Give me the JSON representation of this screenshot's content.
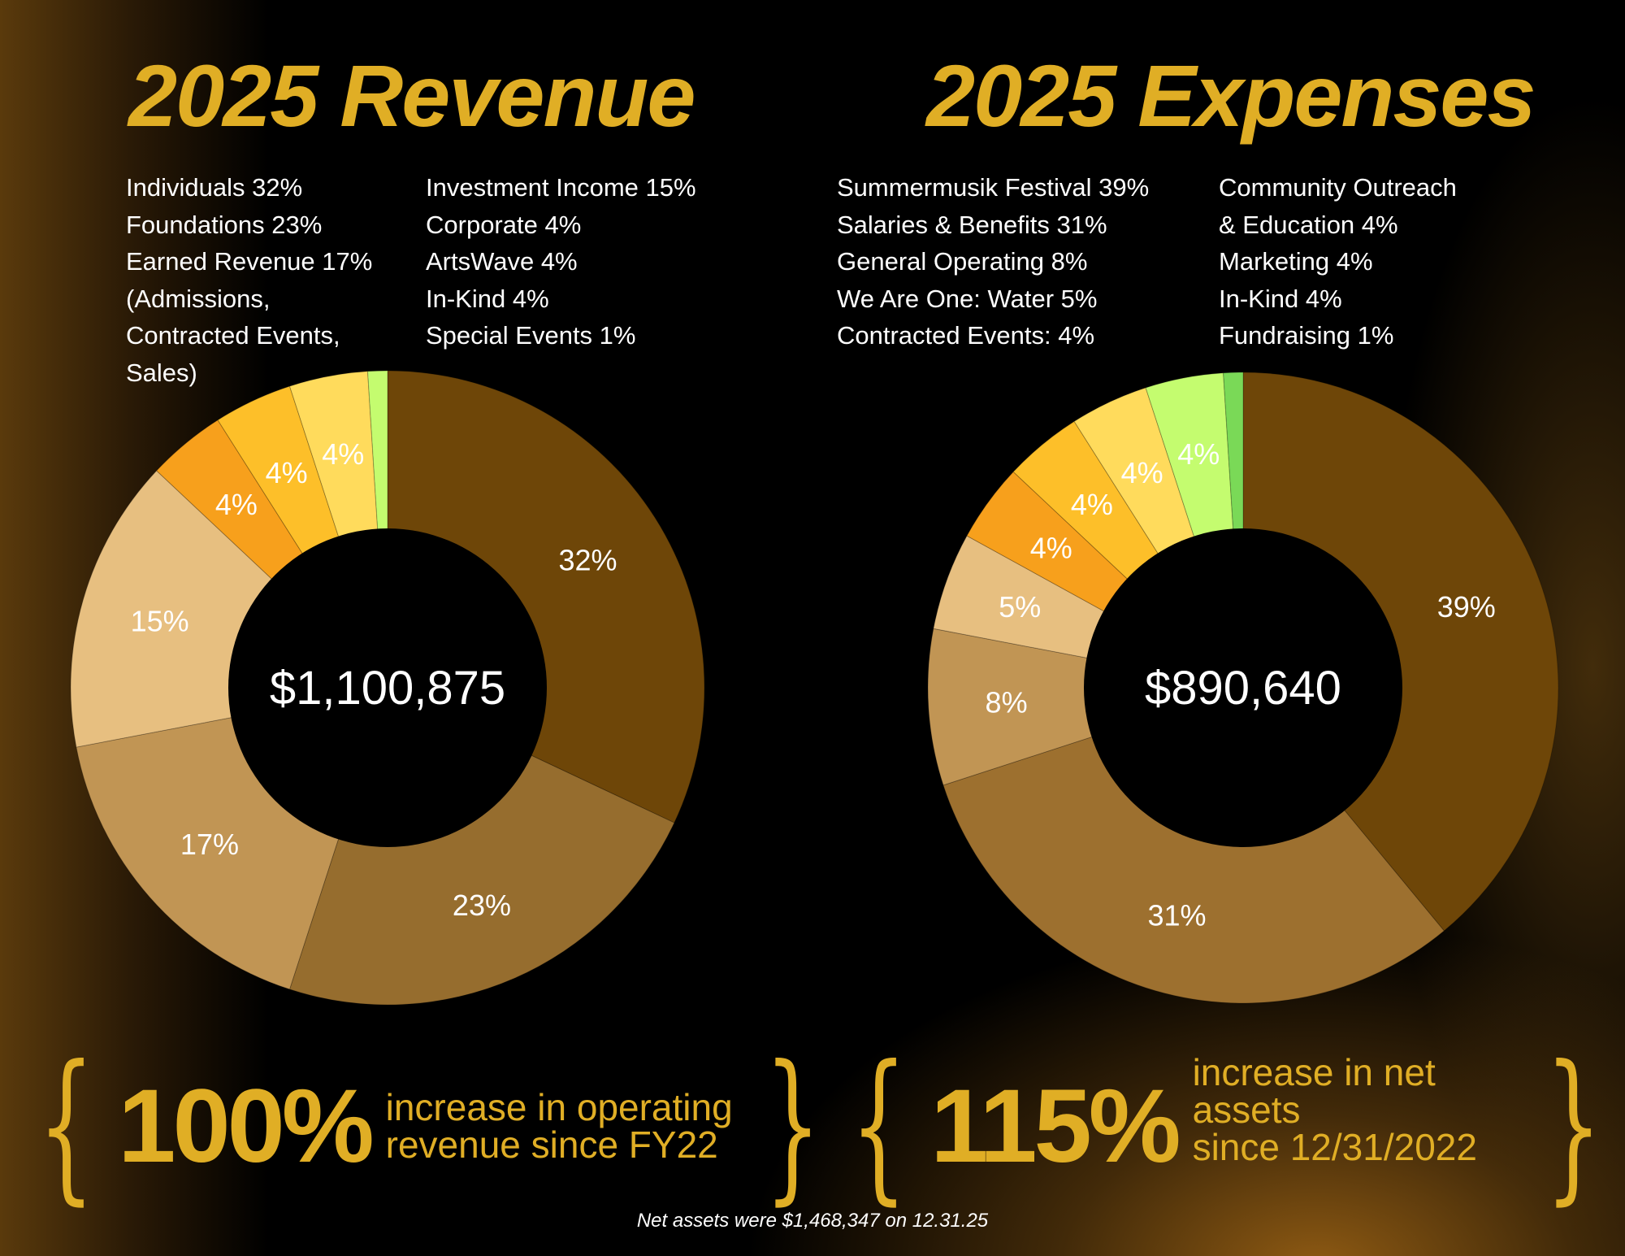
{
  "chart_data": [
    {
      "type": "pie",
      "variant": "donut",
      "title": "2025 Revenue",
      "center_label": "$1,100,875",
      "start": "top, clockwise",
      "categories": [
        "Individuals",
        "Foundations",
        "Earned Revenue (Admissions, Contracted Events, Sales)",
        "Investment Income",
        "Corporate",
        "ArtsWave",
        "In-Kind",
        "Special Events"
      ],
      "values": [
        32,
        23,
        17,
        15,
        4,
        4,
        4,
        1
      ],
      "labels": [
        "32%",
        "23%",
        "17%",
        "15%",
        "4%",
        "4%",
        "4%",
        ""
      ],
      "colors": [
        "#6e4608",
        "#966d2e",
        "#c19554",
        "#e7bf80",
        "#f7a01c",
        "#fdbf29",
        "#ffdb5c",
        "#c4fc6f"
      ],
      "legend": {
        "placement": "top",
        "columns": [
          [
            "Individuals 32%",
            "Foundations 23%",
            "Earned Revenue 17%",
            "(Admissions,",
            "Contracted Events,",
            "Sales)"
          ],
          [
            "Investment Income 15%",
            "Corporate 4%",
            "ArtsWave 4%",
            "In-Kind 4%",
            "Special Events 1%"
          ]
        ]
      }
    },
    {
      "type": "pie",
      "variant": "donut",
      "title": "2025 Expenses",
      "center_label": "$890,640",
      "start": "top, clockwise",
      "categories": [
        "Summermusik Festival",
        "Salaries & Benefits",
        "General Operating",
        "We Are One: Water",
        "Contracted Events",
        "Community Outreach & Education",
        "Marketing",
        "In-Kind",
        "Fundraising"
      ],
      "values": [
        39,
        31,
        8,
        5,
        4,
        4,
        4,
        4,
        1
      ],
      "labels": [
        "39%",
        "31%",
        "8%",
        "5%",
        "4%",
        "4%",
        "4%",
        "4%",
        ""
      ],
      "colors": [
        "#6e4608",
        "#9d702f",
        "#c19554",
        "#e7bf80",
        "#f7a01c",
        "#fdbf29",
        "#ffdb5c",
        "#c4fc6f",
        "#7ad957"
      ],
      "legend": {
        "placement": "top",
        "columns": [
          [
            "Summermusik Festival 39%",
            "Salaries & Benefits 31%",
            "General Operating 8%",
            "We Are One: Water 5%",
            "Contracted Events: 4%"
          ],
          [
            "Community Outreach",
            "& Education 4%",
            "Marketing 4%",
            "In-Kind 4%",
            "Fundraising 1%"
          ]
        ]
      }
    }
  ],
  "stats": [
    {
      "value": "100%",
      "line1": "increase in operating",
      "line2": "revenue since FY22"
    },
    {
      "value": "115%",
      "line1": "increase in net assets",
      "line2": "since 12/31/2022"
    }
  ],
  "brace_open": "{",
  "brace_close": "}",
  "footnote": "Net assets were $1,468,347 on 12.31.25",
  "accent_color": "#e0ae25"
}
